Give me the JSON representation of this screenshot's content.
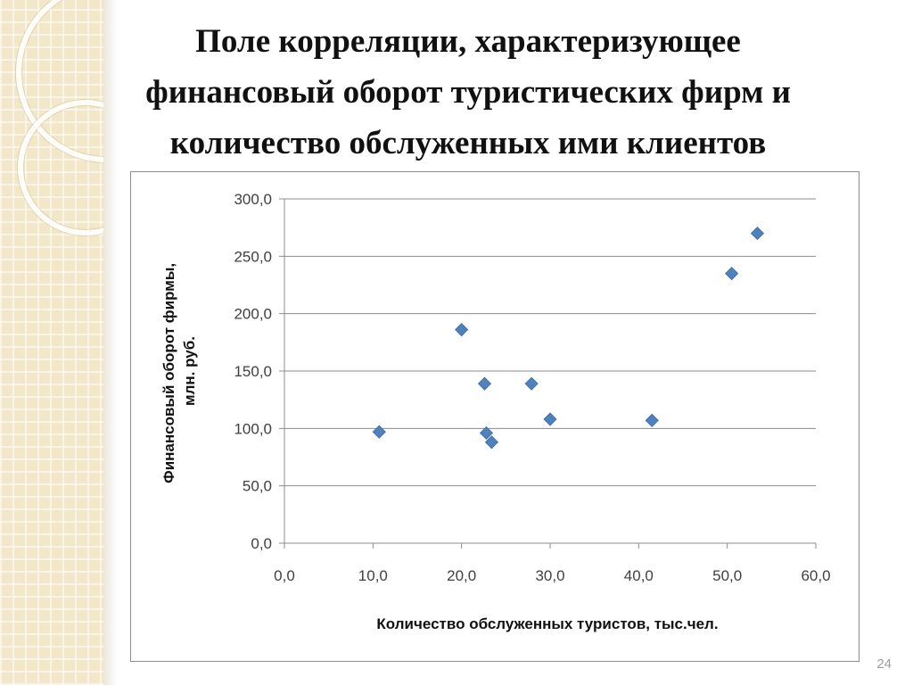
{
  "slide": {
    "title_lines": [
      "Поле корреляции, характеризующее",
      "финансовый оборот туристических фирм и",
      "количество обслуженных ими клиентов"
    ],
    "page_number": "24"
  },
  "colors": {
    "marker": "#4f81bd",
    "gridline": "#8c8c8c",
    "background_strip": "#f3e7c9"
  },
  "chart_data": {
    "type": "scatter",
    "marker": "diamond",
    "xlabel": "Количество обслуженных туристов, тыс.чел.",
    "ylabel_lines": [
      "Финансовый оборот фирмы,",
      "млн. руб."
    ],
    "xlim": [
      0,
      60
    ],
    "ylim": [
      0,
      300
    ],
    "x_ticks": [
      "0,0",
      "10,0",
      "20,0",
      "30,0",
      "40,0",
      "50,0",
      "60,0"
    ],
    "y_ticks": [
      "0,0",
      "50,0",
      "100,0",
      "150,0",
      "200,0",
      "250,0",
      "300,0"
    ],
    "grid": "horizontal",
    "legend": "none",
    "points": [
      {
        "x": 10.7,
        "y": 97
      },
      {
        "x": 20.0,
        "y": 186
      },
      {
        "x": 22.6,
        "y": 139
      },
      {
        "x": 22.8,
        "y": 96
      },
      {
        "x": 23.4,
        "y": 88
      },
      {
        "x": 27.9,
        "y": 139
      },
      {
        "x": 30.0,
        "y": 108
      },
      {
        "x": 41.5,
        "y": 107
      },
      {
        "x": 50.5,
        "y": 235
      },
      {
        "x": 53.4,
        "y": 270
      }
    ]
  }
}
